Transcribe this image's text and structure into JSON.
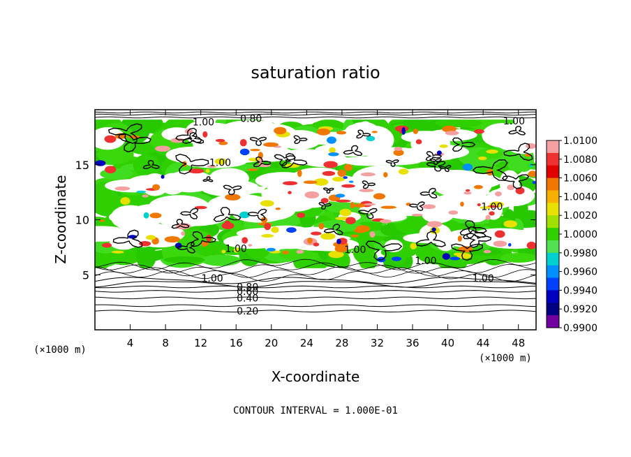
{
  "chart_data": {
    "type": "heatmap",
    "title": "saturation ratio",
    "xlabel": "X-coordinate",
    "ylabel": "Z-coordinate",
    "x_unit": "(×1000 m)",
    "y_unit": "(×1000 m)",
    "xlim": [
      0,
      50
    ],
    "ylim": [
      0,
      20
    ],
    "x_ticks": [
      4,
      8,
      12,
      16,
      20,
      24,
      28,
      32,
      36,
      40,
      44,
      48
    ],
    "y_ticks": [
      5,
      10,
      15
    ],
    "colorbar": {
      "ticks": [
        "1.0100",
        "1.0080",
        "1.0060",
        "1.0040",
        "1.0020",
        "1.0000",
        "0.9980",
        "0.9960",
        "0.9940",
        "0.9920",
        "0.9900"
      ],
      "colors": [
        "#f5a0a0",
        "#ee3030",
        "#e00000",
        "#f07800",
        "#f5b000",
        "#e8e000",
        "#a0e000",
        "#30d000",
        "#50e050",
        "#00d0d0",
        "#0090ff",
        "#0040ff",
        "#0000c0",
        "#000080",
        "#7000a0"
      ]
    },
    "contour_labels": [
      {
        "text": "1.00",
        "x": 12.3,
        "y": 18.9
      },
      {
        "text": "0.80",
        "x": 17.7,
        "y": 19.2
      },
      {
        "text": "1.00",
        "x": 47.5,
        "y": 19.0
      },
      {
        "text": "1.00",
        "x": 14.2,
        "y": 15.2
      },
      {
        "text": "1.00",
        "x": 45.0,
        "y": 11.2
      },
      {
        "text": "1.00",
        "x": 16.0,
        "y": 7.4
      },
      {
        "text": "1.00",
        "x": 29.5,
        "y": 7.3
      },
      {
        "text": "1.00",
        "x": 37.5,
        "y": 6.3
      },
      {
        "text": "1.00",
        "x": 13.3,
        "y": 4.7
      },
      {
        "text": "1.00",
        "x": 44.0,
        "y": 4.7
      },
      {
        "text": "0.80",
        "x": 17.3,
        "y": 3.9
      },
      {
        "text": "0.60",
        "x": 17.3,
        "y": 3.5
      },
      {
        "text": "0.40",
        "x": 17.3,
        "y": 2.9
      },
      {
        "text": "0.20",
        "x": 17.3,
        "y": 1.7
      }
    ],
    "footnote": "CONTOUR INTERVAL = 1.000E-01"
  }
}
